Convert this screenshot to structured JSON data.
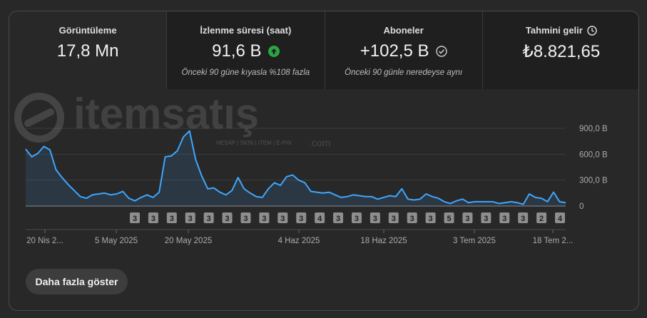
{
  "metrics": [
    {
      "label": "Görüntüleme",
      "value": "17,8 Mn",
      "sub": ""
    },
    {
      "label": "İzlenme süresi (saat)",
      "value": "91,6 B",
      "sub": "Önceki 90 güne kıyasla %108 fazla",
      "icon": "arrow-up-icon",
      "icon_color": "#2ba640"
    },
    {
      "label": "Aboneler",
      "value": "+102,5 B",
      "sub": "Önceki 90 günle neredeyse aynı",
      "icon": "check-circle-icon"
    },
    {
      "label": "Tahmini gelir",
      "value": "₺8.821,65",
      "sub": "",
      "icon": "clock-icon"
    }
  ],
  "watermark": {
    "brand": "itemsatış",
    "tagline": "HESAP | SKIN | ITEM | E-PIN",
    "suffix": ".com"
  },
  "chart_data": {
    "type": "area",
    "line_color": "#3ea6ff",
    "y_ticks": [
      "900,0 B",
      "600,0 B",
      "300,0 B",
      "0"
    ],
    "ylim": [
      0,
      900000
    ],
    "x_tick_labels": [
      "20 Nis 2...",
      "5 May 2025",
      "20 May 2025",
      "4 Haz 2025",
      "18 Haz 2025",
      "3 Tem 2025",
      "18 Tem 2..."
    ],
    "values": [
      660000,
      570000,
      610000,
      690000,
      650000,
      420000,
      330000,
      250000,
      180000,
      110000,
      90000,
      130000,
      140000,
      150000,
      130000,
      140000,
      170000,
      90000,
      60000,
      100000,
      130000,
      100000,
      160000,
      570000,
      580000,
      640000,
      800000,
      870000,
      540000,
      350000,
      200000,
      210000,
      160000,
      130000,
      180000,
      330000,
      200000,
      150000,
      110000,
      100000,
      200000,
      270000,
      240000,
      340000,
      360000,
      300000,
      270000,
      170000,
      160000,
      150000,
      160000,
      130000,
      100000,
      110000,
      130000,
      120000,
      110000,
      110000,
      80000,
      100000,
      120000,
      110000,
      200000,
      80000,
      70000,
      80000,
      140000,
      110000,
      90000,
      50000,
      30000,
      60000,
      80000,
      40000,
      50000,
      50000,
      50000,
      50000,
      30000,
      40000,
      50000,
      40000,
      20000,
      140000,
      100000,
      90000,
      50000,
      160000,
      50000,
      40000
    ],
    "markers": [
      "3",
      "3",
      "3",
      "3",
      "3",
      "3",
      "3",
      "3",
      "3",
      "3",
      "4",
      "3",
      "3",
      "3",
      "3",
      "3",
      "3",
      "5",
      "3",
      "3",
      "3",
      "3",
      "2",
      "4"
    ]
  },
  "footer": {
    "more_label": "Daha fazla göster"
  }
}
